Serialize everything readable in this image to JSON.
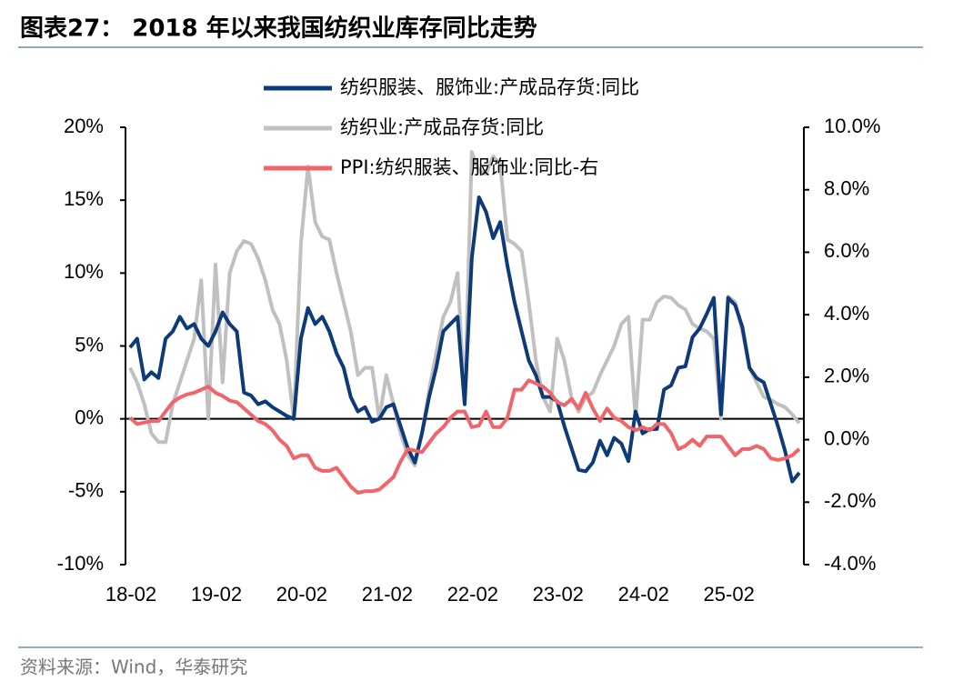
{
  "chart_data": {
    "type": "line",
    "title": "图表27：  2018 年以来我国纺织业库存同比走势",
    "source": "资料来源：Wind，华泰研究",
    "categories": [
      "18-02",
      null,
      null,
      null,
      null,
      null,
      null,
      null,
      null,
      null,
      null,
      null,
      "19-02",
      null,
      null,
      null,
      null,
      null,
      null,
      null,
      null,
      null,
      null,
      null,
      "20-02",
      null,
      null,
      null,
      null,
      null,
      null,
      null,
      null,
      null,
      null,
      null,
      "21-02",
      null,
      null,
      null,
      null,
      null,
      null,
      null,
      null,
      null,
      null,
      null,
      "22-02",
      null,
      null,
      null,
      null,
      null,
      null,
      null,
      null,
      null,
      null,
      null,
      "23-02",
      null,
      null,
      null,
      null,
      null,
      null,
      null,
      null,
      null,
      null,
      null,
      "24-02",
      null,
      null,
      null,
      null,
      null,
      null,
      null,
      null,
      null,
      null,
      null,
      "25-02",
      null,
      null,
      null,
      null,
      null,
      null,
      null,
      null,
      null,
      null
    ],
    "series": [
      {
        "name": "纺织服装、服饰业:产成品存货:同比",
        "color": "#0d3a78",
        "axis": "y",
        "values": [
          4.9,
          5.5,
          2.7,
          3.2,
          2.8,
          5.5,
          6.0,
          7.0,
          6.2,
          6.5,
          5.5,
          5.0,
          6.0,
          7.3,
          6.5,
          6.0,
          1.8,
          1.6,
          1.0,
          1.2,
          0.8,
          0.5,
          0.2,
          0.0,
          5.5,
          7.6,
          6.5,
          7.0,
          6.0,
          4.5,
          3.5,
          1.5,
          0.5,
          0.8,
          -0.2,
          0.0,
          0.8,
          1.0,
          -0.5,
          -2.0,
          -3.0,
          -1.0,
          1.5,
          3.5,
          6.0,
          6.5,
          7.0,
          1.0,
          11.0,
          15.2,
          14.2,
          12.4,
          13.5,
          10.5,
          8.0,
          6.0,
          4.0,
          3.0,
          1.5,
          1.5,
          1.2,
          -0.5,
          -2.0,
          -3.5,
          -3.6,
          -3.0,
          -1.5,
          -2.5,
          -1.3,
          -1.7,
          -2.9,
          0.5,
          -1.0,
          -0.7,
          -0.7,
          2.0,
          2.3,
          3.5,
          3.6,
          5.6,
          6.2,
          7.2,
          8.3,
          0.3,
          8.3,
          7.8,
          6.3,
          3.5,
          2.8,
          2.5,
          1.0,
          -0.5,
          -2.2,
          -4.3,
          -3.7
        ]
      },
      {
        "name": "纺织业:产成品存货:同比",
        "color": "#c0c0c0",
        "axis": "y",
        "values": [
          3.5,
          2.5,
          1.0,
          -1.0,
          -1.6,
          -1.6,
          1.0,
          2.5,
          4.0,
          5.5,
          9.5,
          0.0,
          10.6,
          2.5,
          10.0,
          11.5,
          12.2,
          12.0,
          11.0,
          9.5,
          7.5,
          6.5,
          4.0,
          0.0,
          12.0,
          17.3,
          13.5,
          12.5,
          12.3,
          10.0,
          8.0,
          6.0,
          3.0,
          3.5,
          3.5,
          0.0,
          3.0,
          1.0,
          -1.0,
          -2.5,
          -3.2,
          -1.0,
          2.0,
          4.5,
          7.0,
          8.0,
          10.0,
          1.0,
          18.3,
          17.0,
          16.8,
          18.0,
          17.5,
          12.3,
          12.0,
          11.5,
          8.0,
          4.0,
          1.5,
          0.5,
          5.5,
          4.0,
          1.5,
          0.5,
          1.5,
          1.8,
          3.0,
          4.0,
          5.0,
          6.5,
          7.0,
          0.0,
          6.8,
          6.8,
          8.0,
          8.4,
          8.3,
          7.8,
          7.5,
          6.5,
          6.2,
          6.0,
          5.5,
          0.0,
          8.4,
          8.0,
          6.0,
          3.5,
          2.5,
          1.5,
          1.3,
          1.0,
          0.8,
          0.3,
          -0.3
        ]
      },
      {
        "name": "PPI:纺织服装、服饰业:同比-右",
        "color": "#f0646a",
        "axis": "y2",
        "values": [
          0.7,
          0.5,
          0.55,
          0.6,
          0.6,
          0.9,
          1.2,
          1.35,
          1.45,
          1.5,
          1.6,
          1.7,
          1.5,
          1.4,
          1.25,
          1.2,
          1.0,
          0.8,
          0.6,
          0.5,
          0.3,
          0.0,
          -0.2,
          -0.6,
          -0.5,
          -0.5,
          -0.9,
          -1.0,
          -1.0,
          -0.9,
          -1.2,
          -1.5,
          -1.7,
          -1.65,
          -1.65,
          -1.6,
          -1.4,
          -1.2,
          -0.7,
          -0.3,
          -0.35,
          -0.4,
          -0.1,
          0.2,
          0.4,
          0.7,
          0.9,
          0.9,
          0.4,
          0.45,
          0.9,
          0.4,
          0.4,
          0.7,
          1.6,
          1.6,
          1.9,
          1.8,
          1.7,
          1.5,
          1.2,
          1.1,
          1.3,
          1.0,
          1.5,
          1.0,
          0.6,
          1.0,
          0.7,
          0.6,
          0.4,
          0.3,
          0.4,
          0.3,
          0.5,
          0.5,
          0.2,
          -0.3,
          -0.2,
          0.0,
          -0.2,
          0.1,
          0.1,
          0.1,
          -0.2,
          -0.5,
          -0.3,
          -0.3,
          -0.2,
          -0.3,
          -0.6,
          -0.65,
          -0.6,
          -0.5,
          -0.3
        ]
      }
    ],
    "ylim": [
      -10,
      20
    ],
    "yticks": [
      {
        "value": -10,
        "label": "-10%"
      },
      {
        "value": -5,
        "label": "-5%"
      },
      {
        "value": 0,
        "label": "0%"
      },
      {
        "value": 5,
        "label": "5%"
      },
      {
        "value": 10,
        "label": "10%"
      },
      {
        "value": 15,
        "label": "15%"
      },
      {
        "value": 20,
        "label": "20%"
      }
    ],
    "y2lim": [
      -4,
      10
    ],
    "y2ticks": [
      {
        "value": -4,
        "label": "-4.0%"
      },
      {
        "value": -2,
        "label": "-2.0%"
      },
      {
        "value": 0,
        "label": "0.0%"
      },
      {
        "value": 2,
        "label": "2.0%"
      },
      {
        "value": 4,
        "label": "4.0%"
      },
      {
        "value": 6,
        "label": "6.0%"
      },
      {
        "value": 8,
        "label": "8.0%"
      },
      {
        "value": 10,
        "label": "10.0%"
      }
    ],
    "legend": "top"
  }
}
